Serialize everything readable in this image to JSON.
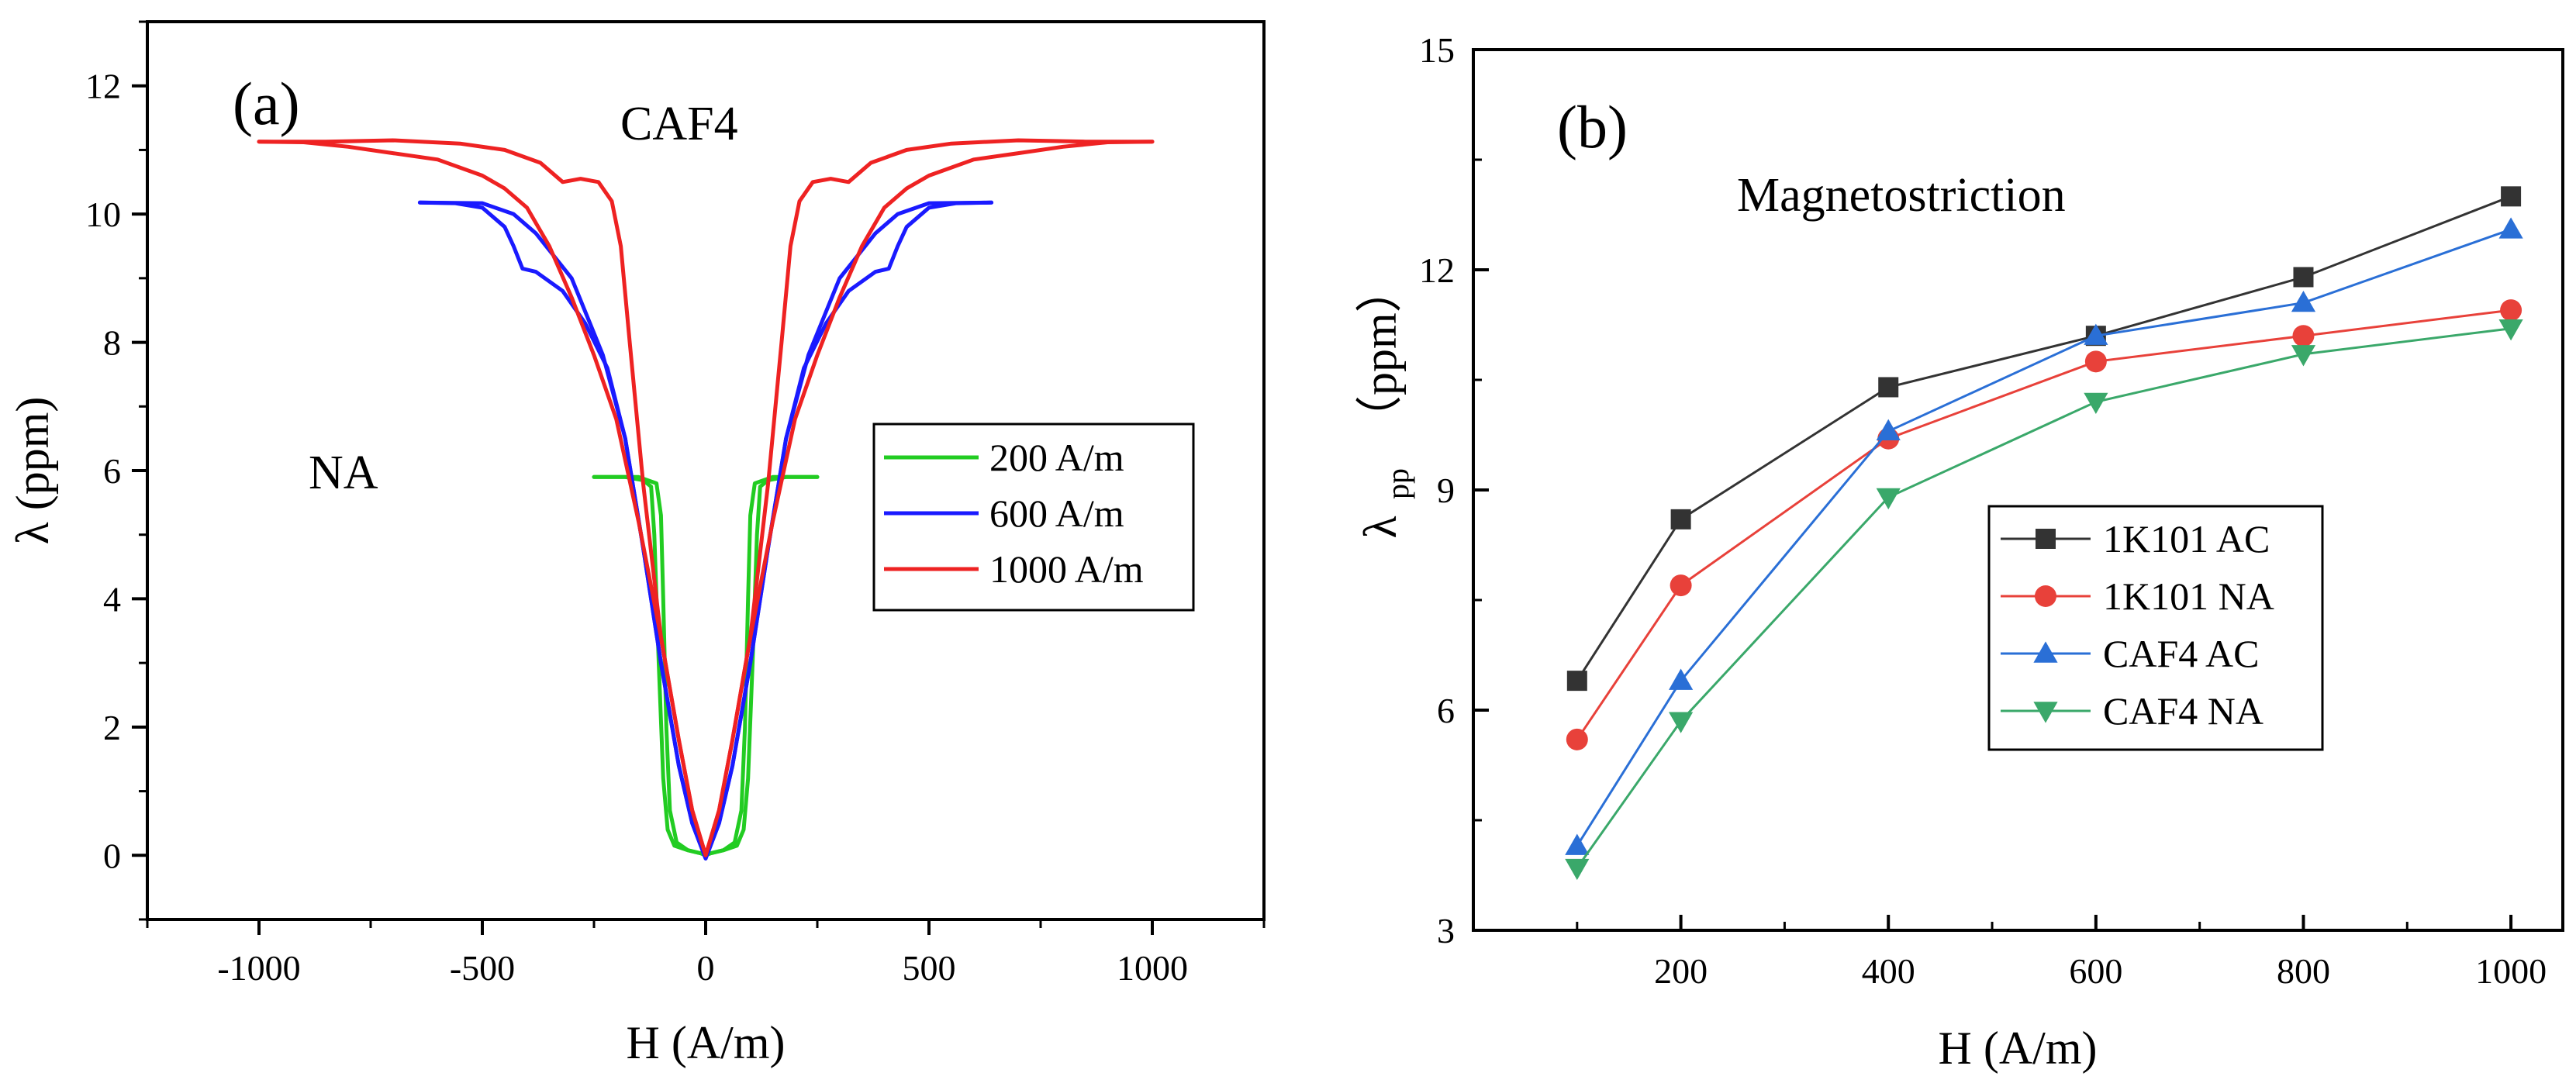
{
  "chart_data": [
    {
      "panel": "(a)",
      "type": "line",
      "title": "",
      "xlabel": "H (A/m)",
      "ylabel": "λ (ppm)",
      "xlim": [
        -1250,
        1250
      ],
      "ylim": [
        -1,
        13
      ],
      "xticks": [
        -1000,
        -500,
        0,
        500,
        1000
      ],
      "xtick_labels": [
        "-1000",
        "-500",
        "0",
        "500",
        "1000"
      ],
      "yticks": [
        0,
        2,
        4,
        6,
        8,
        10,
        12
      ],
      "ytick_labels": [
        "0",
        "2",
        "4",
        "6",
        "8",
        "10",
        "12"
      ],
      "annotations": [
        "CAF4",
        "NA"
      ],
      "legend": {
        "position": "right-middle"
      },
      "series": [
        {
          "name": "200 A/m",
          "color": "#22cc22",
          "rising": [
            [
              -250,
              5.9
            ],
            [
              -150,
              5.9
            ],
            [
              -110,
              5.8
            ],
            [
              -100,
              5.3
            ],
            [
              -95,
              4.0
            ],
            [
              -88,
              2.0
            ],
            [
              -80,
              0.7
            ],
            [
              -65,
              0.2
            ],
            [
              -40,
              0.08
            ],
            [
              -10,
              0.03
            ],
            [
              0,
              0.0
            ],
            [
              10,
              0.03
            ],
            [
              40,
              0.08
            ],
            [
              70,
              0.15
            ],
            [
              85,
              0.4
            ],
            [
              95,
              1.2
            ],
            [
              105,
              3.0
            ],
            [
              115,
              5.0
            ],
            [
              122,
              5.75
            ],
            [
              140,
              5.85
            ],
            [
              180,
              5.9
            ],
            [
              250,
              5.9
            ]
          ],
          "falling": [
            [
              250,
              5.9
            ],
            [
              150,
              5.9
            ],
            [
              110,
              5.8
            ],
            [
              100,
              5.3
            ],
            [
              95,
              4.0
            ],
            [
              88,
              2.0
            ],
            [
              80,
              0.7
            ],
            [
              65,
              0.2
            ],
            [
              40,
              0.08
            ],
            [
              10,
              0.03
            ],
            [
              0,
              0.0
            ],
            [
              -10,
              0.03
            ],
            [
              -40,
              0.08
            ],
            [
              -70,
              0.15
            ],
            [
              -85,
              0.4
            ],
            [
              -95,
              1.2
            ],
            [
              -105,
              3.0
            ],
            [
              -115,
              5.0
            ],
            [
              -122,
              5.75
            ],
            [
              -140,
              5.85
            ],
            [
              -180,
              5.9
            ],
            [
              -250,
              5.9
            ]
          ]
        },
        {
          "name": "600 A/m",
          "color": "#1a1aff",
          "rising": [
            [
              -640,
              10.18
            ],
            [
              -500,
              10.17
            ],
            [
              -430,
              10.0
            ],
            [
              -380,
              9.7
            ],
            [
              -300,
              9.0
            ],
            [
              -230,
              7.8
            ],
            [
              -180,
              6.5
            ],
            [
              -140,
              4.8
            ],
            [
              -100,
              3.0
            ],
            [
              -60,
              1.4
            ],
            [
              -30,
              0.5
            ],
            [
              0,
              -0.05
            ],
            [
              30,
              0.5
            ],
            [
              60,
              1.4
            ],
            [
              100,
              3.0
            ],
            [
              140,
              4.8
            ],
            [
              180,
              6.5
            ],
            [
              220,
              7.6
            ],
            [
              270,
              8.3
            ],
            [
              320,
              8.8
            ],
            [
              380,
              9.1
            ],
            [
              410,
              9.15
            ],
            [
              430,
              9.5
            ],
            [
              450,
              9.8
            ],
            [
              500,
              10.1
            ],
            [
              560,
              10.17
            ],
            [
              640,
              10.18
            ]
          ],
          "falling": [
            [
              640,
              10.18
            ],
            [
              500,
              10.17
            ],
            [
              430,
              10.0
            ],
            [
              380,
              9.7
            ],
            [
              300,
              9.0
            ],
            [
              230,
              7.8
            ],
            [
              180,
              6.5
            ],
            [
              140,
              4.8
            ],
            [
              100,
              3.0
            ],
            [
              60,
              1.4
            ],
            [
              30,
              0.5
            ],
            [
              0,
              -0.05
            ],
            [
              -30,
              0.5
            ],
            [
              -60,
              1.4
            ],
            [
              -100,
              3.0
            ],
            [
              -140,
              4.8
            ],
            [
              -180,
              6.5
            ],
            [
              -220,
              7.6
            ],
            [
              -270,
              8.3
            ],
            [
              -320,
              8.8
            ],
            [
              -380,
              9.1
            ],
            [
              -410,
              9.15
            ],
            [
              -430,
              9.5
            ],
            [
              -450,
              9.8
            ],
            [
              -500,
              10.1
            ],
            [
              -560,
              10.17
            ],
            [
              -640,
              10.18
            ]
          ]
        },
        {
          "name": "1000 A/m",
          "color": "#ee2222",
          "rising": [
            [
              -1000,
              11.13
            ],
            [
              -900,
              11.12
            ],
            [
              -800,
              11.05
            ],
            [
              -700,
              10.95
            ],
            [
              -600,
              10.85
            ],
            [
              -500,
              10.6
            ],
            [
              -450,
              10.4
            ],
            [
              -400,
              10.1
            ],
            [
              -350,
              9.5
            ],
            [
              -300,
              8.7
            ],
            [
              -250,
              7.8
            ],
            [
              -200,
              6.8
            ],
            [
              -150,
              5.2
            ],
            [
              -100,
              3.4
            ],
            [
              -60,
              1.8
            ],
            [
              -30,
              0.7
            ],
            [
              0,
              0.0
            ],
            [
              30,
              0.7
            ],
            [
              60,
              1.8
            ],
            [
              100,
              3.4
            ],
            [
              140,
              5.8
            ],
            [
              170,
              8.0
            ],
            [
              190,
              9.5
            ],
            [
              210,
              10.2
            ],
            [
              240,
              10.5
            ],
            [
              280,
              10.55
            ],
            [
              320,
              10.5
            ],
            [
              370,
              10.8
            ],
            [
              450,
              11.0
            ],
            [
              550,
              11.1
            ],
            [
              700,
              11.15
            ],
            [
              850,
              11.13
            ],
            [
              1000,
              11.13
            ]
          ],
          "falling": [
            [
              1000,
              11.13
            ],
            [
              900,
              11.12
            ],
            [
              800,
              11.05
            ],
            [
              700,
              10.95
            ],
            [
              600,
              10.85
            ],
            [
              500,
              10.6
            ],
            [
              450,
              10.4
            ],
            [
              400,
              10.1
            ],
            [
              350,
              9.5
            ],
            [
              300,
              8.7
            ],
            [
              250,
              7.8
            ],
            [
              200,
              6.8
            ],
            [
              150,
              5.2
            ],
            [
              100,
              3.4
            ],
            [
              60,
              1.8
            ],
            [
              30,
              0.7
            ],
            [
              0,
              0.0
            ],
            [
              -30,
              0.7
            ],
            [
              -60,
              1.8
            ],
            [
              -100,
              3.4
            ],
            [
              -140,
              5.8
            ],
            [
              -170,
              8.0
            ],
            [
              -190,
              9.5
            ],
            [
              -210,
              10.2
            ],
            [
              -240,
              10.5
            ],
            [
              -280,
              10.55
            ],
            [
              -320,
              10.5
            ],
            [
              -370,
              10.8
            ],
            [
              -450,
              11.0
            ],
            [
              -550,
              11.1
            ],
            [
              -700,
              11.15
            ],
            [
              -850,
              11.13
            ],
            [
              -1000,
              11.13
            ]
          ]
        }
      ]
    },
    {
      "panel": "(b)",
      "type": "line",
      "title": "Magnetostriction",
      "xlabel": "H (A/m)",
      "ylabel_main": "λ",
      "ylabel_sub": "pp",
      "ylabel_unit": "（ppm）",
      "xlim": [
        0,
        1050
      ],
      "ylim": [
        3,
        15
      ],
      "xticks": [
        200,
        400,
        600,
        800,
        1000
      ],
      "xtick_labels": [
        "200",
        "400",
        "600",
        "800",
        "1000"
      ],
      "yticks": [
        3,
        6,
        9,
        12,
        15
      ],
      "ytick_labels": [
        "3",
        "6",
        "9",
        "12",
        "15"
      ],
      "legend": {
        "position": "center-right"
      },
      "series": [
        {
          "name": "1K101 AC",
          "color": "#333333",
          "marker": "square",
          "x": [
            100,
            200,
            400,
            600,
            800,
            1000
          ],
          "y": [
            6.4,
            8.6,
            10.4,
            11.1,
            11.9,
            13.0
          ]
        },
        {
          "name": "1K101 NA",
          "color": "#e8413a",
          "marker": "circle",
          "x": [
            100,
            200,
            400,
            600,
            800,
            1000
          ],
          "y": [
            5.6,
            7.7,
            9.7,
            10.75,
            11.1,
            11.45
          ]
        },
        {
          "name": "CAF4 AC",
          "color": "#2a6fd6",
          "marker": "triangle-up",
          "x": [
            100,
            200,
            400,
            600,
            800,
            1000
          ],
          "y": [
            4.15,
            6.4,
            9.8,
            11.1,
            11.55,
            12.55
          ]
        },
        {
          "name": "CAF4 NA",
          "color": "#3aa86a",
          "marker": "triangle-down",
          "x": [
            100,
            200,
            400,
            600,
            800,
            1000
          ],
          "y": [
            3.85,
            5.85,
            8.9,
            10.2,
            10.85,
            11.2
          ]
        }
      ]
    }
  ]
}
